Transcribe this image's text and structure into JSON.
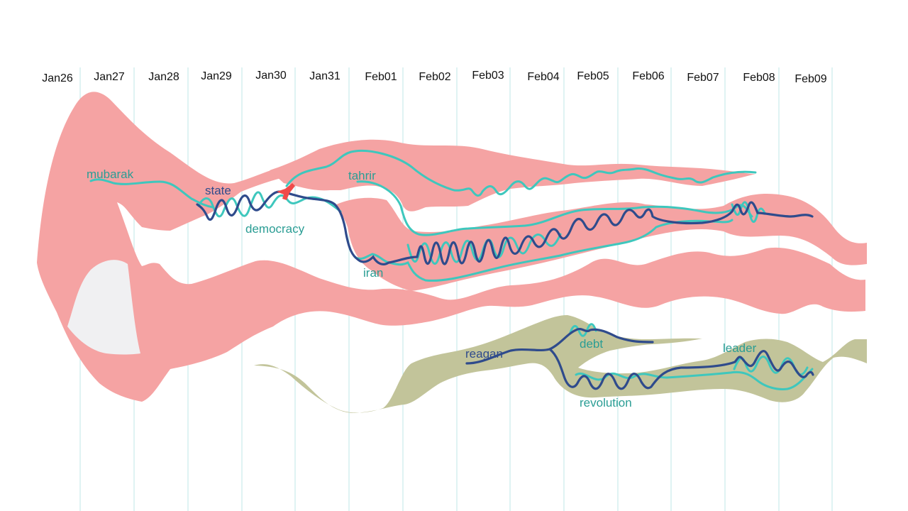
{
  "dates": [
    "Jan26",
    "Jan27",
    "Jan28",
    "Jan29",
    "Jan30",
    "Jan31",
    "Feb01",
    "Feb02",
    "Feb03",
    "Feb04",
    "Feb05",
    "Feb06",
    "Feb07",
    "Feb08",
    "Feb09"
  ],
  "keywords": {
    "mubarak": "mubarak",
    "state": "state",
    "democracy": "democracy",
    "tahrir": "tahrir",
    "iran": "iran",
    "reagan": "reagan",
    "debt": "debt",
    "leader": "leader",
    "revolution": "revolution"
  },
  "colors": {
    "topic_pink": "#f5a3a3",
    "topic_olive": "#c2c49a",
    "hole": "#f0f0f2",
    "teal": "#3ec7bd",
    "navy": "#2f4b8c",
    "split_red": "#f04a4a",
    "label_teal": "#2a9d94",
    "label_navy": "#2f4b8c"
  }
}
